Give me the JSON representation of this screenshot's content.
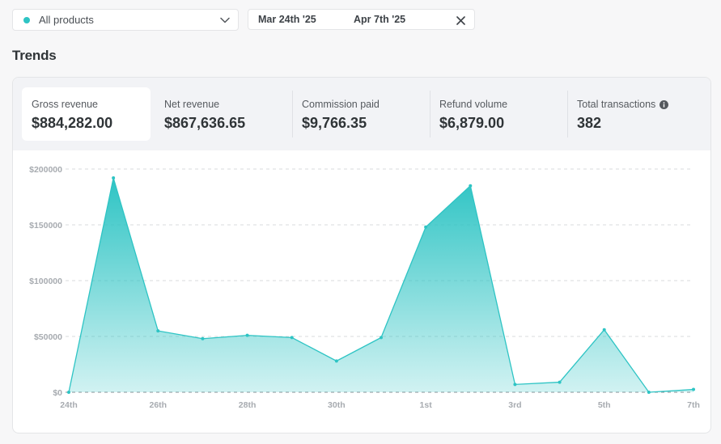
{
  "filter": {
    "product_label": "All products",
    "dot_color": "#2ec4c4"
  },
  "date_range": {
    "start": "Mar 24th '25",
    "end": "Apr 7th '25"
  },
  "section_title": "Trends",
  "metrics": [
    {
      "label": "Gross revenue",
      "value": "$884,282.00"
    },
    {
      "label": "Net revenue",
      "value": "$867,636.65"
    },
    {
      "label": "Commission paid",
      "value": "$9,766.35"
    },
    {
      "label": "Refund volume",
      "value": "$6,879.00"
    },
    {
      "label": "Total transactions",
      "value": "382"
    }
  ],
  "chart_data": {
    "type": "area",
    "accent_color": "#2ec4c4",
    "x": [
      "24th",
      "25th",
      "26th",
      "27th",
      "28th",
      "29th",
      "30th",
      "31st",
      "1st",
      "2nd",
      "3rd",
      "4th",
      "5th",
      "6th",
      "7th"
    ],
    "x_tick_labels": [
      "24th",
      "26th",
      "28th",
      "30th",
      "1st",
      "3rd",
      "5th",
      "7th"
    ],
    "series": [
      {
        "values": [
          0,
          192000,
          55000,
          48000,
          51000,
          49000,
          28000,
          49000,
          148000,
          185000,
          7000,
          9000,
          56000,
          0,
          2500
        ]
      }
    ],
    "y_tick_labels": [
      "$0",
      "$50000",
      "$100000",
      "$150000",
      "$200000"
    ],
    "y_ticks": [
      0,
      50000,
      100000,
      150000,
      200000
    ],
    "ylim": [
      0,
      200000
    ],
    "grid": true
  }
}
